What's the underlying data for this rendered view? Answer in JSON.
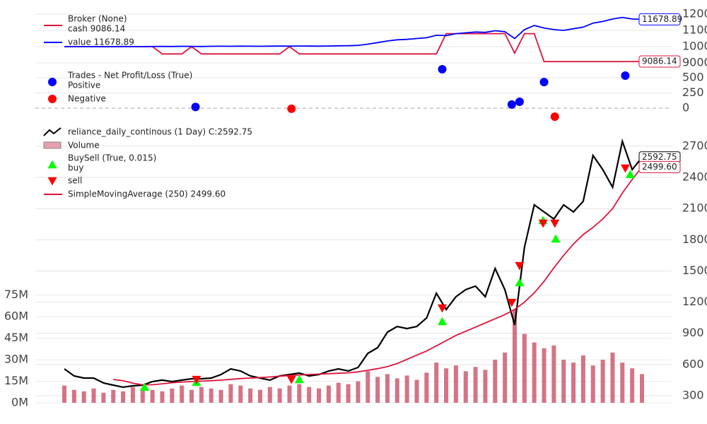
{
  "chart_data": [
    {
      "type": "line",
      "title": "Broker (None)",
      "xlim": [
        0,
        59
      ],
      "ylim": [
        8520,
        12350
      ],
      "yticks": [
        9000,
        10000,
        11000,
        12000
      ],
      "grid": true,
      "series": [
        {
          "name": "cash 9086.14",
          "color": "#dc143c",
          "tag": true,
          "values": [
            10000,
            10000,
            10000,
            10000,
            10000,
            10000,
            10000,
            10000,
            10000,
            10000,
            9550,
            9550,
            9550,
            10000,
            9550,
            9550,
            9550,
            9550,
            9550,
            9550,
            9550,
            9550,
            9550,
            10000,
            9550,
            9550,
            9550,
            9550,
            9550,
            9550,
            9550,
            9550,
            9550,
            9550,
            9550,
            9550,
            9550,
            9550,
            9550,
            10800,
            10800,
            10800,
            10800,
            10800,
            10800,
            10800,
            9600,
            10800,
            10800,
            9080,
            9080,
            9080,
            9080,
            9080,
            9080,
            9080,
            9080,
            9080,
            9086.14,
            9086.14
          ]
        },
        {
          "name": "value 11678.89",
          "color": "#0000ff",
          "tag": true,
          "values": [
            10000,
            10000,
            10005,
            10000,
            9995,
            10000,
            10010,
            10005,
            10000,
            10010,
            10015,
            10010,
            10020,
            10015,
            10010,
            10020,
            10025,
            10020,
            10030,
            10025,
            10020,
            10030,
            10035,
            10030,
            10040,
            10035,
            10030,
            10040,
            10050,
            10060,
            10080,
            10150,
            10250,
            10350,
            10420,
            10450,
            10500,
            10550,
            10700,
            10680,
            10800,
            10850,
            10900,
            10880,
            10980,
            10920,
            10500,
            11050,
            11300,
            11150,
            11050,
            11000,
            11100,
            11200,
            11450,
            11550,
            11700,
            11800,
            11700,
            11678.89
          ]
        }
      ]
    },
    {
      "type": "scatter",
      "title": "Trades - Net Profit/Loss (True)",
      "xlim": [
        0,
        59
      ],
      "ylim": [
        -220,
        675
      ],
      "yticks": [
        0,
        250,
        500
      ],
      "grid": true,
      "series": [
        {
          "name": "Positive",
          "color": "#0000ff",
          "marker": "o",
          "x": [
            13.4,
            38.6,
            45.7,
            46.5,
            49.0,
            57.3
          ],
          "values": [
            20,
            640,
            60,
            105,
            430,
            535
          ]
        },
        {
          "name": "Negative",
          "color": "#ff0000",
          "marker": "o",
          "x": [
            23.2,
            50.1
          ],
          "values": [
            -10,
            -140
          ]
        }
      ]
    },
    {
      "type": "line",
      "xlim": [
        0,
        59
      ],
      "ylim": [
        232,
        2883
      ],
      "yticks": [
        300,
        600,
        900,
        1200,
        1500,
        1800,
        2100,
        2400,
        2700
      ],
      "grid": true,
      "y2lim": [
        0,
        192000000
      ],
      "y2ticks": [
        {
          "value": 0,
          "label": "0M"
        },
        {
          "value": 15000000,
          "label": "15M"
        },
        {
          "value": 30000000,
          "label": "30M"
        },
        {
          "value": 45000000,
          "label": "45M"
        },
        {
          "value": 60000000,
          "label": "60M"
        },
        {
          "value": 75000000,
          "label": "75M"
        }
      ],
      "legend_group": "BuySell (True, 0.015)",
      "series": [
        {
          "name": "reliance_daily_continous (1 Day) C:2592.75",
          "color": "#000000",
          "tag": true,
          "values": [
            558,
            490,
            470,
            470,
            422,
            402,
            382,
            395,
            402,
            436,
            450,
            436,
            450,
            463,
            463,
            470,
            504,
            558,
            538,
            490,
            470,
            450,
            490,
            504,
            518,
            490,
            504,
            538,
            558,
            538,
            572,
            708,
            762,
            912,
            966,
            946,
            966,
            1048,
            1286,
            1129,
            1252,
            1320,
            1354,
            1252,
            1524,
            1320,
            980,
            1728,
            2136,
            2068,
            2000,
            2136,
            2068,
            2170,
            2611,
            2475,
            2305,
            2747,
            2475,
            2592.75
          ]
        },
        {
          "name": "Volume",
          "type": "bar",
          "axis": "y2",
          "color": "#cd5c70",
          "values": [
            12000000,
            9000000,
            8000000,
            10000000,
            7000000,
            9000000,
            8000000,
            11000000,
            10000000,
            9000000,
            8000000,
            10000000,
            12000000,
            9000000,
            11000000,
            10000000,
            9000000,
            13000000,
            12000000,
            10000000,
            9000000,
            11000000,
            10000000,
            12000000,
            13000000,
            11000000,
            10000000,
            12000000,
            14000000,
            13000000,
            15000000,
            22000000,
            18000000,
            20000000,
            17000000,
            19000000,
            16000000,
            21000000,
            28000000,
            24000000,
            26000000,
            22000000,
            25000000,
            23000000,
            30000000,
            35000000,
            65000000,
            48000000,
            42000000,
            38000000,
            40000000,
            30000000,
            28000000,
            33000000,
            26000000,
            30000000,
            35000000,
            28000000,
            24000000,
            20000000
          ]
        },
        {
          "name": "buy",
          "type": "scatter",
          "marker": "^",
          "color": "#00ff00",
          "x": [
            8.2,
            13.5,
            24.0,
            38.6,
            46.5,
            48.9,
            50.2,
            57.8
          ],
          "values": [
            382,
            430,
            456,
            1014,
            1388,
            1986,
            1809,
            2428
          ]
        },
        {
          "name": "sell",
          "type": "scatter",
          "marker": "v",
          "color": "#ff0000",
          "x": [
            13.5,
            23.2,
            38.6,
            45.7,
            46.5,
            48.9,
            50.1,
            57.3
          ],
          "values": [
            456,
            456,
            1143,
            1197,
            1551,
            1959,
            1959,
            2489
          ]
        },
        {
          "name": "SimpleMovingAverage (250) 2499.60",
          "color": "#dc143c",
          "tag": true,
          "values": [
            null,
            null,
            null,
            null,
            null,
            456,
            445,
            420,
            405,
            405,
            415,
            425,
            432,
            436,
            440,
            445,
            450,
            458,
            465,
            470,
            475,
            480,
            488,
            495,
            500,
            504,
            508,
            512,
            516,
            520,
            530,
            545,
            560,
            580,
            610,
            650,
            690,
            730,
            780,
            830,
            880,
            920,
            960,
            1000,
            1040,
            1080,
            1130,
            1200,
            1290,
            1400,
            1530,
            1650,
            1760,
            1850,
            1920,
            2000,
            2100,
            2250,
            2380,
            2499.6
          ],
          "value_labels": [
            null,
            null,
            null,
            null,
            null,
            null,
            null,
            null,
            null,
            null,
            null,
            null,
            null,
            null,
            null,
            null,
            null,
            null,
            null,
            null,
            null,
            null,
            null,
            null,
            null,
            null,
            null,
            null,
            null,
            null,
            null,
            null,
            null,
            null,
            null,
            null,
            null,
            null,
            null,
            null,
            null,
            null,
            null,
            null,
            null,
            null,
            null,
            null,
            null,
            null,
            null,
            null,
            null,
            null,
            null,
            null,
            null,
            null,
            null,
            "2499.60"
          ]
        }
      ]
    }
  ]
}
